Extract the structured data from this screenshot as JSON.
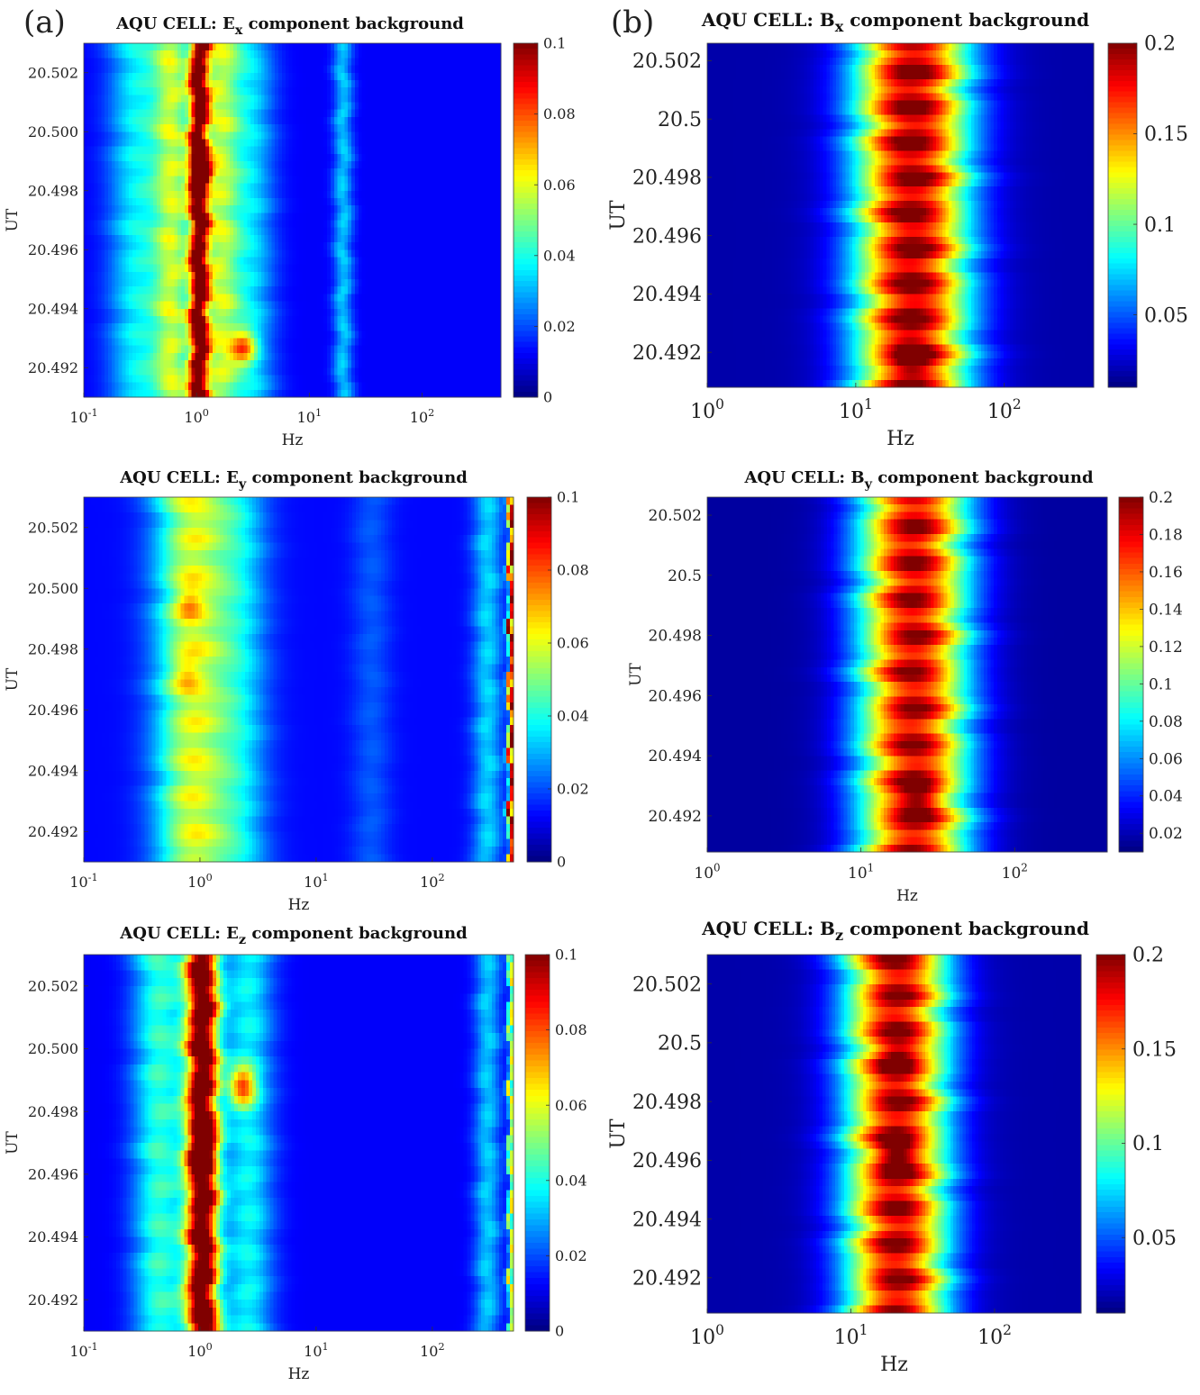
{
  "panel_labels": [
    "(a)",
    "(b)"
  ],
  "chart_data": [
    {
      "type": "heatmap",
      "title": "AQU CELL: E_x component background",
      "title_parts": {
        "pre": "AQU CELL: E",
        "sub": "x",
        "post": " component background"
      },
      "xlabel": "Hz",
      "ylabel": "UT",
      "xscale": "log",
      "xlim": [
        0.1,
        500
      ],
      "x_ticks": [
        {
          "base": "10",
          "exp": "-1",
          "value": 0.1
        },
        {
          "base": "10",
          "exp": "0",
          "value": 1
        },
        {
          "base": "10",
          "exp": "1",
          "value": 10
        },
        {
          "base": "10",
          "exp": "2",
          "value": 100
        }
      ],
      "ylim": [
        20.491,
        20.503
      ],
      "y_ticks": [
        {
          "label": "20.492",
          "value": 20.492
        },
        {
          "label": "20.494",
          "value": 20.494
        },
        {
          "label": "20.496",
          "value": 20.496
        },
        {
          "label": "20.498",
          "value": 20.498
        },
        {
          "label": "20.500",
          "value": 20.5
        },
        {
          "label": "20.502",
          "value": 20.502
        }
      ],
      "clim": [
        0,
        0.1
      ],
      "colorbar_ticks": [
        {
          "label": "0",
          "value": 0
        },
        {
          "label": "0.02",
          "value": 0.02
        },
        {
          "label": "0.04",
          "value": 0.04
        },
        {
          "label": "0.06",
          "value": 0.06
        },
        {
          "label": "0.08",
          "value": 0.08
        },
        {
          "label": "0.1",
          "value": 0.1
        }
      ],
      "colormap": "jet",
      "background": 0.012,
      "bands": [
        {
          "center_hz": 0.3,
          "width_decades": 0.18,
          "peak": 0.025
        },
        {
          "center_hz": 0.62,
          "width_decades": 0.12,
          "peak": 0.04
        },
        {
          "center_hz": 1.05,
          "width_decades": 0.06,
          "peak": 0.085
        },
        {
          "center_hz": 1.6,
          "width_decades": 0.12,
          "peak": 0.04
        },
        {
          "center_hz": 3.0,
          "width_decades": 0.15,
          "peak": 0.022
        },
        {
          "center_hz": 20,
          "width_decades": 0.06,
          "peak": 0.02
        }
      ],
      "blobs": [
        {
          "hz": 1.05,
          "ut": 20.4986,
          "peak": 0.035
        },
        {
          "hz": 2.6,
          "ut": 20.4927,
          "peak": 0.04
        }
      ]
    },
    {
      "type": "heatmap",
      "title": "AQU CELL: E_y component background",
      "title_parts": {
        "pre": "AQU CELL: E",
        "sub": "y",
        "post": " component background"
      },
      "xlabel": "Hz",
      "ylabel": "UT",
      "xscale": "log",
      "xlim": [
        0.1,
        500
      ],
      "x_ticks": [
        {
          "base": "10",
          "exp": "-1",
          "value": 0.1
        },
        {
          "base": "10",
          "exp": "0",
          "value": 1
        },
        {
          "base": "10",
          "exp": "1",
          "value": 10
        },
        {
          "base": "10",
          "exp": "2",
          "value": 100
        }
      ],
      "ylim": [
        20.491,
        20.503
      ],
      "y_ticks": [
        {
          "label": "20.492",
          "value": 20.492
        },
        {
          "label": "20.494",
          "value": 20.494
        },
        {
          "label": "20.496",
          "value": 20.496
        },
        {
          "label": "20.498",
          "value": 20.498
        },
        {
          "label": "20.500",
          "value": 20.5
        },
        {
          "label": "20.502",
          "value": 20.502
        }
      ],
      "clim": [
        0,
        0.1
      ],
      "colorbar_ticks": [
        {
          "label": "0",
          "value": 0
        },
        {
          "label": "0.02",
          "value": 0.02
        },
        {
          "label": "0.04",
          "value": 0.04
        },
        {
          "label": "0.06",
          "value": 0.06
        },
        {
          "label": "0.08",
          "value": 0.08
        },
        {
          "label": "0.1",
          "value": 0.1
        }
      ],
      "colormap": "jet",
      "background": 0.013,
      "bands": [
        {
          "center_hz": 0.85,
          "width_decades": 0.22,
          "peak": 0.045
        },
        {
          "center_hz": 2.2,
          "width_decades": 0.18,
          "peak": 0.02
        },
        {
          "center_hz": 30,
          "width_decades": 0.12,
          "peak": 0.008
        },
        {
          "center_hz": 300,
          "width_decades": 0.09,
          "peak": 0.02
        },
        {
          "center_hz": 480,
          "width_decades": 0.02,
          "peak": 0.085
        }
      ],
      "blobs": [
        {
          "hz": 0.8,
          "ut": 20.4995,
          "peak": 0.015
        },
        {
          "hz": 0.75,
          "ut": 20.4972,
          "peak": 0.012
        }
      ]
    },
    {
      "type": "heatmap",
      "title": "AQU CELL: E_z component background",
      "title_parts": {
        "pre": "AQU CELL: E",
        "sub": "z",
        "post": " component background"
      },
      "xlabel": "Hz",
      "ylabel": "UT",
      "xscale": "log",
      "xlim": [
        0.1,
        500
      ],
      "x_ticks": [
        {
          "base": "10",
          "exp": "-1",
          "value": 0.1
        },
        {
          "base": "10",
          "exp": "0",
          "value": 1
        },
        {
          "base": "10",
          "exp": "1",
          "value": 10
        },
        {
          "base": "10",
          "exp": "2",
          "value": 100
        }
      ],
      "ylim": [
        20.491,
        20.503
      ],
      "y_ticks": [
        {
          "label": "20.492",
          "value": 20.492
        },
        {
          "label": "20.494",
          "value": 20.494
        },
        {
          "label": "20.496",
          "value": 20.496
        },
        {
          "label": "20.498",
          "value": 20.498
        },
        {
          "label": "20.500",
          "value": 20.5
        },
        {
          "label": "20.502",
          "value": 20.502
        }
      ],
      "clim": [
        0,
        0.1
      ],
      "colorbar_ticks": [
        {
          "label": "0",
          "value": 0
        },
        {
          "label": "0.02",
          "value": 0.02
        },
        {
          "label": "0.04",
          "value": 0.04
        },
        {
          "label": "0.06",
          "value": 0.06
        },
        {
          "label": "0.08",
          "value": 0.08
        },
        {
          "label": "0.1",
          "value": 0.1
        }
      ],
      "colormap": "jet",
      "background": 0.012,
      "bands": [
        {
          "center_hz": 0.45,
          "width_decades": 0.16,
          "peak": 0.03
        },
        {
          "center_hz": 1.05,
          "width_decades": 0.1,
          "peak": 0.1
        },
        {
          "center_hz": 2.6,
          "width_decades": 0.15,
          "peak": 0.025
        },
        {
          "center_hz": 300,
          "width_decades": 0.08,
          "peak": 0.02
        },
        {
          "center_hz": 480,
          "width_decades": 0.02,
          "peak": 0.05
        }
      ],
      "blobs": [
        {
          "hz": 2.3,
          "ut": 20.4988,
          "peak": 0.05
        },
        {
          "hz": 1.05,
          "ut": 20.4968,
          "peak": 0.03
        }
      ]
    },
    {
      "type": "heatmap",
      "title": "AQU CELL: B_x component background",
      "title_parts": {
        "pre": "AQU CELL: B",
        "sub": "x",
        "post": " component background"
      },
      "xlabel": "Hz",
      "ylabel": "UT",
      "xscale": "log",
      "xlim": [
        1,
        400
      ],
      "x_ticks": [
        {
          "base": "10",
          "exp": "0",
          "value": 1
        },
        {
          "base": "10",
          "exp": "1",
          "value": 10
        },
        {
          "base": "10",
          "exp": "2",
          "value": 100
        }
      ],
      "ylim": [
        20.4908,
        20.5026
      ],
      "y_ticks": [
        {
          "label": "20.492",
          "value": 20.492
        },
        {
          "label": "20.494",
          "value": 20.494
        },
        {
          "label": "20.496",
          "value": 20.496
        },
        {
          "label": "20.498",
          "value": 20.498
        },
        {
          "label": "20.5",
          "value": 20.5
        },
        {
          "label": "20.502",
          "value": 20.502
        }
      ],
      "clim": [
        0.01,
        0.2
      ],
      "colorbar_ticks": [
        {
          "label": "0.05",
          "value": 0.05
        },
        {
          "label": "0.1",
          "value": 0.1
        },
        {
          "label": "0.15",
          "value": 0.15
        },
        {
          "label": "0.2",
          "value": 0.2
        }
      ],
      "colormap": "jet",
      "background": 0.018,
      "bands": [
        {
          "center_hz": 24,
          "width_decades": 0.27,
          "peak": 0.175
        }
      ],
      "blobs": [
        {
          "hz": 24,
          "ut": 20.4918,
          "peak": 0.03
        }
      ]
    },
    {
      "type": "heatmap",
      "title": "AQU CELL: B_y component background",
      "title_parts": {
        "pre": "AQU CELL: B",
        "sub": "y",
        "post": " component background"
      },
      "xlabel": "Hz",
      "ylabel": "UT",
      "xscale": "log",
      "xlim": [
        1,
        400
      ],
      "x_ticks": [
        {
          "base": "10",
          "exp": "0",
          "value": 1
        },
        {
          "base": "10",
          "exp": "1",
          "value": 10
        },
        {
          "base": "10",
          "exp": "2",
          "value": 100
        }
      ],
      "ylim": [
        20.4908,
        20.5026
      ],
      "y_ticks": [
        {
          "label": "20.492",
          "value": 20.492
        },
        {
          "label": "20.494",
          "value": 20.494
        },
        {
          "label": "20.496",
          "value": 20.496
        },
        {
          "label": "20.498",
          "value": 20.498
        },
        {
          "label": "20.5",
          "value": 20.5
        },
        {
          "label": "20.502",
          "value": 20.502
        }
      ],
      "clim": [
        0.01,
        0.2
      ],
      "colorbar_ticks": [
        {
          "label": "0.02",
          "value": 0.02
        },
        {
          "label": "0.04",
          "value": 0.04
        },
        {
          "label": "0.06",
          "value": 0.06
        },
        {
          "label": "0.08",
          "value": 0.08
        },
        {
          "label": "0.1",
          "value": 0.1
        },
        {
          "label": "0.12",
          "value": 0.12
        },
        {
          "label": "0.14",
          "value": 0.14
        },
        {
          "label": "0.16",
          "value": 0.16
        },
        {
          "label": "0.18",
          "value": 0.18
        },
        {
          "label": "0.2",
          "value": 0.2
        }
      ],
      "colormap": "jet",
      "background": 0.016,
      "bands": [
        {
          "center_hz": 22,
          "width_decades": 0.25,
          "peak": 0.17
        }
      ],
      "blobs": [
        {
          "hz": 24,
          "ut": 20.4926,
          "peak": 0.03
        }
      ]
    },
    {
      "type": "heatmap",
      "title": "AQU CELL: B_z component background",
      "title_parts": {
        "pre": "AQU CELL: B",
        "sub": "z",
        "post": " component background"
      },
      "xlabel": "Hz",
      "ylabel": "UT",
      "xscale": "log",
      "xlim": [
        1,
        400
      ],
      "x_ticks": [
        {
          "base": "10",
          "exp": "0",
          "value": 1
        },
        {
          "base": "10",
          "exp": "1",
          "value": 10
        },
        {
          "base": "10",
          "exp": "2",
          "value": 100
        }
      ],
      "ylim": [
        20.4908,
        20.503
      ],
      "y_ticks": [
        {
          "label": "20.492",
          "value": 20.492
        },
        {
          "label": "20.494",
          "value": 20.494
        },
        {
          "label": "20.496",
          "value": 20.496
        },
        {
          "label": "20.498",
          "value": 20.498
        },
        {
          "label": "20.5",
          "value": 20.5
        },
        {
          "label": "20.502",
          "value": 20.502
        }
      ],
      "clim": [
        0.01,
        0.2
      ],
      "colorbar_ticks": [
        {
          "label": "0.05",
          "value": 0.05
        },
        {
          "label": "0.1",
          "value": 0.1
        },
        {
          "label": "0.15",
          "value": 0.15
        },
        {
          "label": "0.2",
          "value": 0.2
        }
      ],
      "colormap": "jet",
      "background": 0.018,
      "bands": [
        {
          "center_hz": 21,
          "width_decades": 0.25,
          "peak": 0.17
        }
      ],
      "blobs": [
        {
          "hz": 21,
          "ut": 20.4962,
          "peak": 0.035
        },
        {
          "hz": 21,
          "ut": 20.4994,
          "peak": 0.025
        }
      ]
    }
  ]
}
